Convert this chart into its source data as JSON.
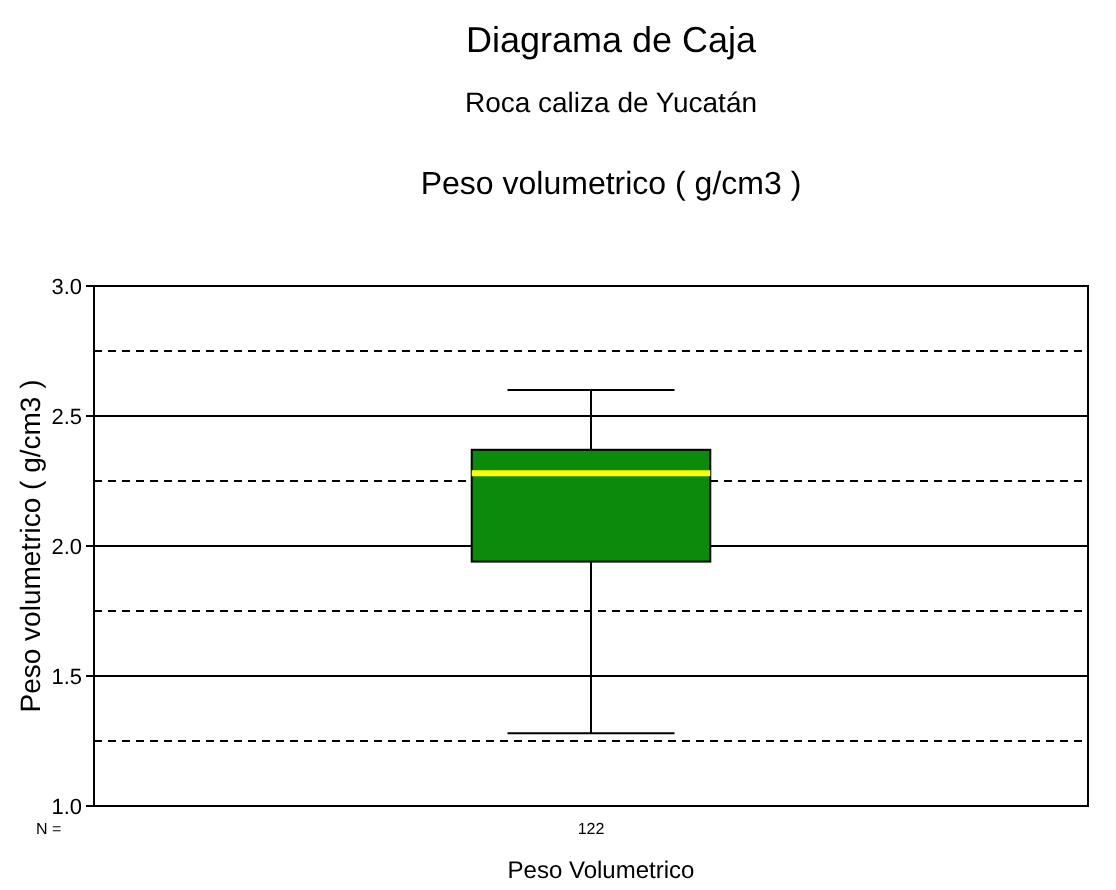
{
  "chart_data": {
    "type": "box",
    "title": "Diagrama de Caja",
    "subtitle": "Roca caliza de Yucatán",
    "annotations": [
      "Peso volumetrico ( g/cm3 )",
      "N ="
    ],
    "xlabel": "Peso Volumetrico",
    "ylabel": "Peso volumetrico ( g/cm3 )",
    "categories": [
      "122"
    ],
    "series": [
      {
        "color": "#0b8a0b",
        "boxes": [
          {
            "low": 1.28,
            "q1": 1.94,
            "median": 2.28,
            "q3": 2.37,
            "high": 2.6
          }
        ]
      }
    ],
    "ylim": [
      1,
      3
    ],
    "yticks": [
      {
        "value": 1,
        "label": "1.0"
      },
      {
        "value": 1.25,
        "label": null
      },
      1.5,
      {
        "value": 1.75,
        "label": null
      },
      {
        "value": 2,
        "label": "2.0"
      },
      {
        "value": 2.25,
        "label": null
      },
      2.5,
      {
        "value": 2.75,
        "label": null
      },
      {
        "value": 3,
        "label": "3.0"
      }
    ],
    "grid": "y"
  }
}
